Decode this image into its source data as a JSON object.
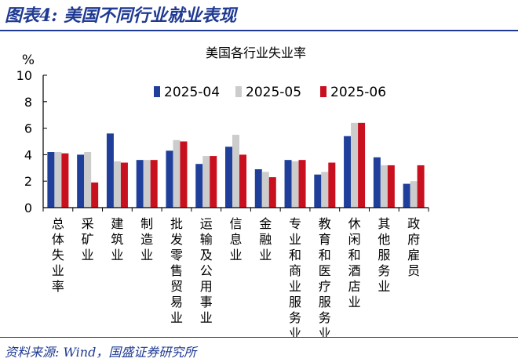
{
  "header": {
    "figure_title": "图表4:  美国不同行业就业表现"
  },
  "footer": {
    "source": "资料来源:  Wind，国盛证券研究所"
  },
  "chart_data": {
    "type": "bar",
    "title": "美国各行业失业率",
    "ylabel": "%",
    "ylim": [
      0,
      10
    ],
    "yticks": [
      0,
      2,
      4,
      6,
      8,
      10
    ],
    "grid": false,
    "legend_position": "top",
    "categories": [
      "总体失业率",
      "采矿业",
      "建筑业",
      "制造业",
      "批发零售贸易业",
      "运输及公用事业",
      "信息业",
      "金融业",
      "专业和商业服务业",
      "教育和医疗服务业",
      "休闲和酒店业",
      "其他服务业",
      "政府雇员"
    ],
    "series": [
      {
        "name": "2025-04",
        "color": "#1f3f9b",
        "values": [
          4.2,
          4.0,
          5.6,
          3.6,
          4.3,
          3.3,
          4.6,
          2.9,
          3.6,
          2.5,
          5.4,
          3.8,
          1.8
        ]
      },
      {
        "name": "2025-05",
        "color": "#cccccc",
        "values": [
          4.2,
          4.2,
          3.5,
          3.6,
          5.1,
          3.9,
          5.5,
          2.7,
          3.5,
          2.7,
          6.4,
          3.2,
          2.0
        ]
      },
      {
        "name": "2025-06",
        "color": "#c8101e",
        "values": [
          4.1,
          1.9,
          3.4,
          3.6,
          5.0,
          3.9,
          4.0,
          2.3,
          3.6,
          3.4,
          6.4,
          3.2,
          3.2
        ]
      }
    ]
  }
}
